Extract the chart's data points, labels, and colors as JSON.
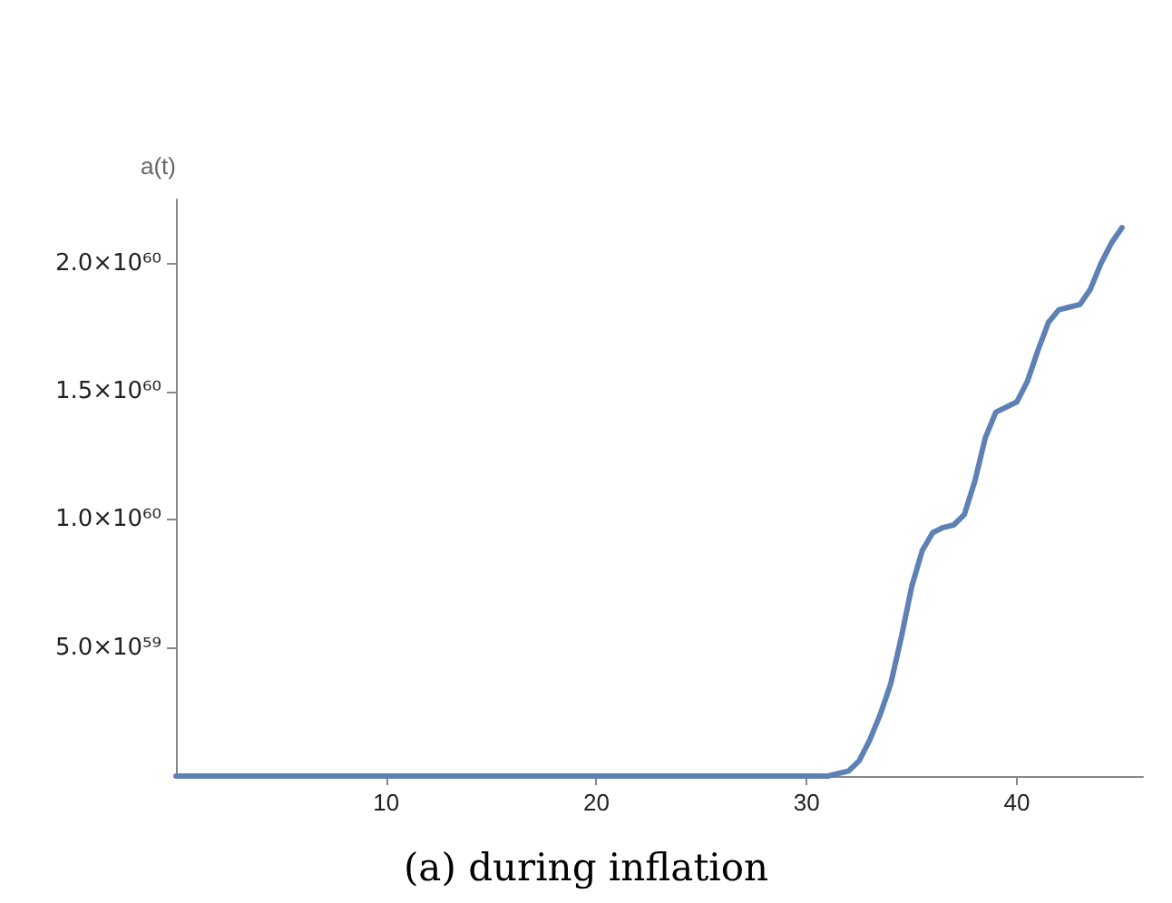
{
  "chart_data": {
    "type": "line",
    "title": "(a) during inflation",
    "ylabel": "a(t)",
    "x": [
      0,
      5,
      10,
      15,
      20,
      25,
      30,
      31,
      32,
      32.5,
      33,
      33.5,
      34,
      34.5,
      35,
      35.5,
      36,
      36.5,
      37,
      37.5,
      38,
      38.5,
      39,
      39.5,
      40,
      40.5,
      41,
      41.5,
      42,
      42.5,
      43,
      43.5,
      44,
      44.5,
      45
    ],
    "series": [
      {
        "color": "#5e81b5",
        "values": [
          0,
          0,
          0,
          0,
          0,
          0,
          0,
          0,
          2e+58,
          6e+58,
          1.4e+59,
          2.4e+59,
          3.6e+59,
          5.4e+59,
          7.4e+59,
          8.8e+59,
          9.5e+59,
          9.7e+59,
          9.8e+59,
          1.02e+60,
          1.15e+60,
          1.32e+60,
          1.42e+60,
          1.44e+60,
          1.46e+60,
          1.54e+60,
          1.66e+60,
          1.77e+60,
          1.82e+60,
          1.83e+60,
          1.84e+60,
          1.9e+60,
          2e+60,
          2.08e+60,
          2.14e+60
        ]
      }
    ],
    "xlim": [
      0,
      46
    ],
    "xticks": [
      10,
      20,
      30,
      40
    ],
    "ylim": [
      0,
      2.25e+60
    ],
    "yticks": [
      {
        "value": 5e+59,
        "label": "5.0×10⁵⁹"
      },
      {
        "value": 1e+60,
        "label": "1.0×10⁶⁰"
      },
      {
        "value": 1.5e+60,
        "label": "1.5×10⁶⁰"
      },
      {
        "value": 2e+60,
        "label": "2.0×10⁶⁰"
      }
    ],
    "grid": false,
    "marker": "none",
    "line_style": "solid"
  }
}
